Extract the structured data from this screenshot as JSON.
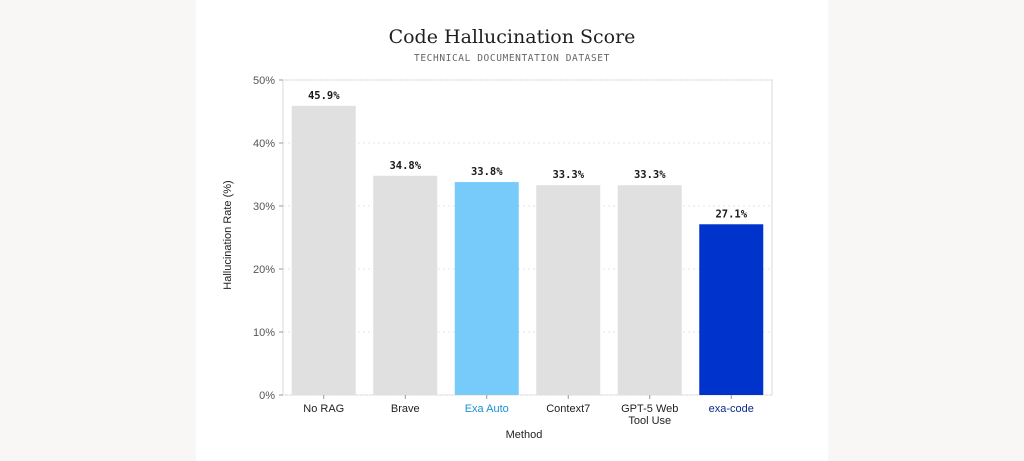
{
  "chart_data": {
    "type": "bar",
    "title": "Code Hallucination Score",
    "subtitle": "TECHNICAL DOCUMENTATION DATASET",
    "xlabel": "Method",
    "ylabel": "Hallucination Rate (%)",
    "ylim": [
      0,
      50
    ],
    "yticks": [
      0,
      10,
      20,
      30,
      40,
      50
    ],
    "ytick_suffix": "%",
    "grid": true,
    "categories": [
      [
        "No RAG"
      ],
      [
        "Brave"
      ],
      [
        "Exa Auto"
      ],
      [
        "Context7"
      ],
      [
        "GPT-5 Web",
        "Tool Use"
      ],
      [
        "exa-code"
      ]
    ],
    "values": [
      45.9,
      34.8,
      33.8,
      33.3,
      33.3,
      27.1
    ],
    "value_labels": [
      "45.9%",
      "34.8%",
      "33.8%",
      "33.3%",
      "33.3%",
      "27.1%"
    ],
    "bar_colors": [
      "#e0e0e0",
      "#e0e0e0",
      "#76cbfa",
      "#e0e0e0",
      "#e0e0e0",
      "#0033cc"
    ],
    "label_colors": [
      "#222222",
      "#222222",
      "#1b8fd6",
      "#222222",
      "#222222",
      "#0b2a8a"
    ]
  }
}
